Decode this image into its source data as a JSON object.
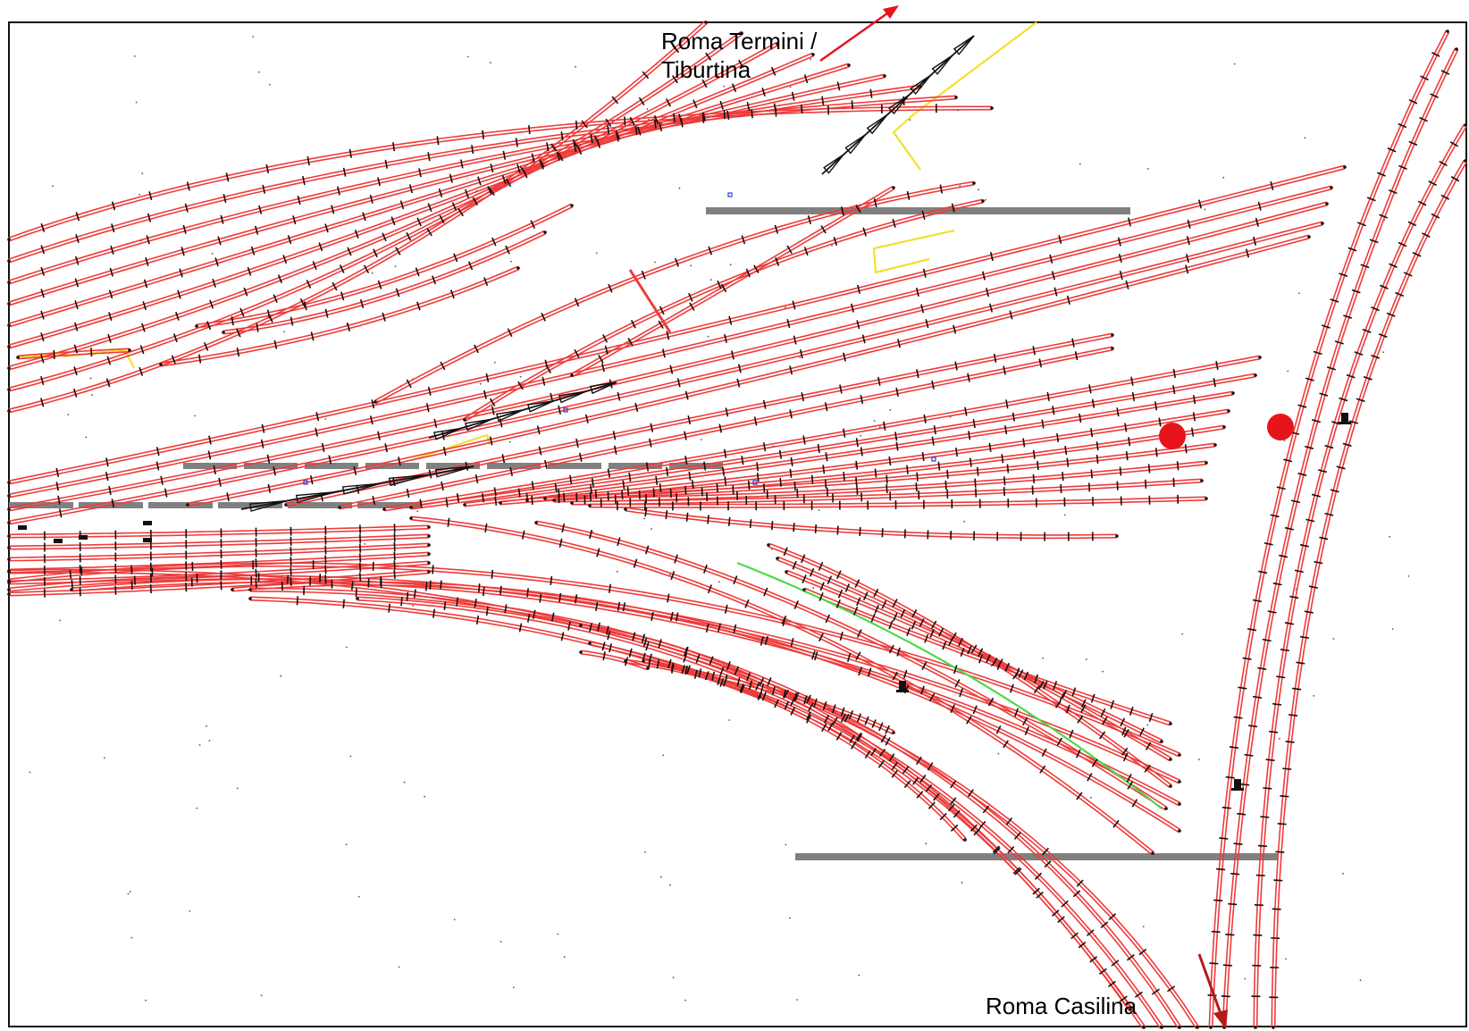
{
  "labels": {
    "north_line1": "Roma Termini /",
    "north_line2": "Tiburtina",
    "south": "Roma Casilina"
  },
  "colors": {
    "track": "#ee3b3b",
    "sleeper": "#111111",
    "platform": "#808080",
    "outline": "#f2e12b",
    "highlight": "#4cd94c",
    "marker": "#e8141b",
    "arrow_north": "#e8141b",
    "arrow_south": "#b51a1a",
    "frame": "#111111"
  },
  "markers": {
    "count": 2
  }
}
